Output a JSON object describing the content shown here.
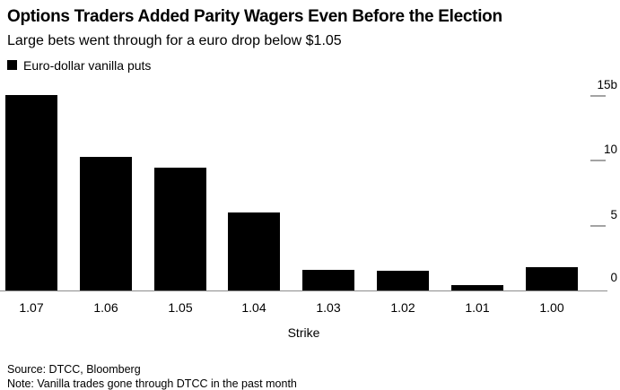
{
  "chart_data": {
    "type": "bar",
    "title": "Options Traders Added Parity Wagers Even Before the Election",
    "subtitle": "Large bets went through for a euro drop below $1.05",
    "categories": [
      "1.07",
      "1.06",
      "1.05",
      "1.04",
      "1.03",
      "1.02",
      "1.01",
      "1.00"
    ],
    "series": [
      {
        "name": "Euro-dollar vanilla puts",
        "values": [
          15.1,
          10.3,
          9.5,
          6.0,
          1.6,
          1.5,
          0.4,
          1.8
        ]
      }
    ],
    "xlabel": "Strike",
    "ylabel": "",
    "ylim": [
      0,
      16
    ],
    "yticks": [
      {
        "value": 0,
        "label": "0"
      },
      {
        "value": 5,
        "label": "5"
      },
      {
        "value": 10,
        "label": "10"
      },
      {
        "value": 15,
        "label": "15b"
      }
    ],
    "unit": "b",
    "grid": false,
    "legend_position": "top-left",
    "colors": {
      "bar": "#000000",
      "axis_line": "#8c8c8c",
      "tick": "#a3a3a3",
      "text": "#000000",
      "background": "#ffffff"
    }
  },
  "footer": {
    "source": "Source: DTCC, Bloomberg",
    "note": "Note: Vanilla trades gone through DTCC in the past month"
  }
}
